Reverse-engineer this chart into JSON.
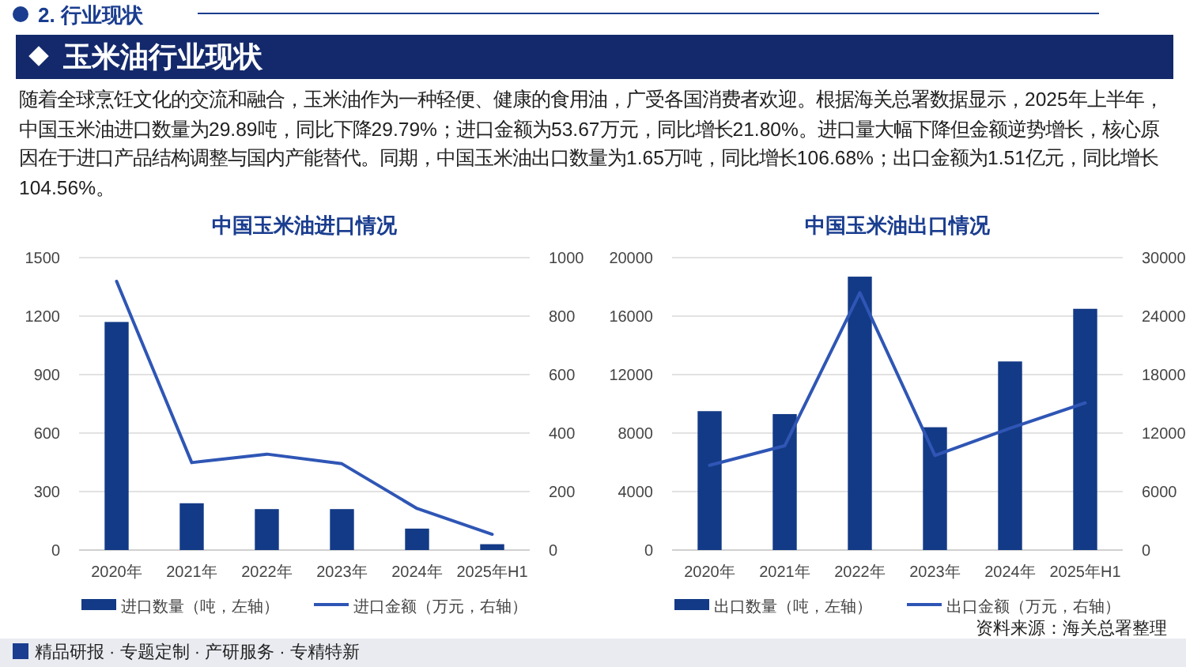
{
  "chart_data": [
    {
      "type": "other",
      "subtitle": "2. 行业现状",
      "title": "玉米油行业现状",
      "annotations": [
        "随着全球烹饪文化的交流和融合，玉米油作为一种轻便、健康的食用油，广受各国消费者欢迎。根据海关总署数据显示，2025年上半年，中国玉米油进口数量为29.89吨，同比下降29.79%；进口金额为53.67万元，同比增长21.80%。进口量大幅下降但金额逆势增长，核心原因在于进口产品结构调整与国内产能替代。同期，中国玉米油出口数量为1.65万吨，同比增长106.68%；出口金额为1.51亿元，同比增长104.56%。",
        "精品研报 · 专题定制 · 产研服务 · 专精特新",
        "资料来源：海关总署整理"
      ]
    },
    {
      "type": "bar",
      "title": "中国玉米油进口情况",
      "categories": [
        "2020年",
        "2021年",
        "2022年",
        "2023年",
        "2024年",
        "2025年H1"
      ],
      "series": [
        {
          "name": "进口数量（吨，左轴）",
          "type": "bar",
          "color": "#133a86",
          "values": [
            1170,
            240,
            210,
            210,
            110,
            30
          ]
        },
        {
          "name": "进口金额（万元，右轴）",
          "type": "line",
          "axis": "y2",
          "color": "#2f56b5",
          "values": [
            919,
            299,
            328,
            295,
            142,
            54
          ]
        }
      ],
      "ylim": [
        0,
        1500
      ],
      "yticks": [
        0,
        300,
        600,
        900,
        1200,
        1500
      ],
      "y2lim": [
        0,
        1000
      ],
      "y2ticks": [
        0,
        200,
        400,
        600,
        800,
        1000
      ],
      "grid": "y",
      "legend": "bottom"
    },
    {
      "type": "bar",
      "title": "中国玉米油出口情况",
      "categories": [
        "2020年",
        "2021年",
        "2022年",
        "2023年",
        "2024年",
        "2025年H1"
      ],
      "series": [
        {
          "name": "出口数量（吨，左轴）",
          "type": "bar",
          "color": "#133a86",
          "values": [
            9500,
            9300,
            18700,
            8400,
            12900,
            16500
          ]
        },
        {
          "name": "出口金额（万元，右轴）",
          "type": "line",
          "axis": "y2",
          "color": "#2f56b5",
          "values": [
            8700,
            10700,
            26400,
            9700,
            12500,
            15100
          ]
        }
      ],
      "ylim": [
        0,
        20000
      ],
      "yticks": [
        0,
        4000,
        8000,
        12000,
        16000,
        20000
      ],
      "y2lim": [
        0,
        30000
      ],
      "y2ticks": [
        0,
        6000,
        12000,
        18000,
        24000,
        30000
      ],
      "grid": "y",
      "legend": "bottom"
    }
  ]
}
